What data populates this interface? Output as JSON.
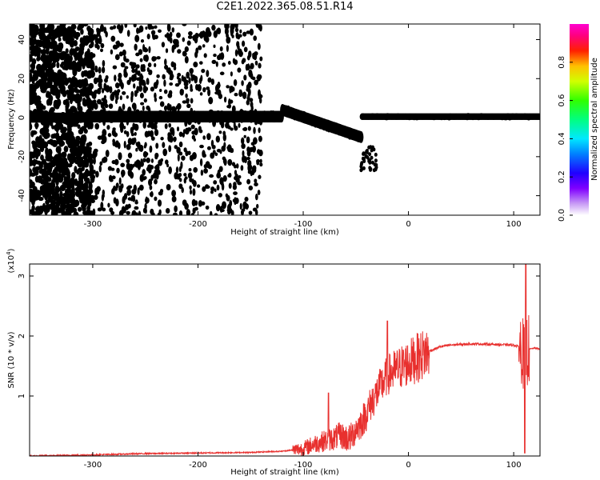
{
  "title": "C2E1.2022.365.08.51.R14",
  "colors": {
    "snr_line": "#e8302e",
    "axes": "#000000"
  },
  "chart_data": [
    {
      "type": "heatmap",
      "xlabel": "Height of straight line (km)",
      "ylabel": "Frequency (Hz)",
      "xlim": [
        -360,
        125
      ],
      "ylim": [
        -50,
        48
      ],
      "x_ticks": [
        -300,
        -200,
        -100,
        0,
        100
      ],
      "y_ticks": [
        -40,
        -20,
        0,
        20,
        40
      ],
      "colorbar": {
        "label": "Normalized spectral amplitude",
        "range": [
          0.0,
          1.0
        ],
        "ticks": [
          0.0,
          0.2,
          0.4,
          0.6,
          0.8
        ],
        "tick_labels": [
          "0.0",
          "0.2",
          "0.4",
          "0.6",
          "0.8"
        ],
        "colormap": "rainbow (white-violet-blue-cyan-green-yellow-red-magenta)"
      },
      "grid": false,
      "description_of_signal": [
        {
          "x_range": [
            -360,
            -300
          ],
          "freq_center": 0,
          "spread": 48,
          "amplitude": 0.2
        },
        {
          "x_range": [
            -300,
            -120
          ],
          "freq_center": 0,
          "band_halfwidth": 4,
          "amplitude": 0.45
        },
        {
          "x_range": [
            -120,
            -45
          ],
          "freq_center_start": 4,
          "freq_center_end": -10,
          "amplitude": 0.5
        },
        {
          "x_range": [
            -45,
            125
          ],
          "freq_center": 0,
          "band_halfwidth": 2,
          "amplitude": 0.85
        }
      ]
    },
    {
      "type": "line",
      "xlabel": "Height of straight line (km)",
      "ylabel": "SNR (10 * v/v)",
      "y_multiplier": "(x10",
      "y_multiplier_exp": "4",
      "xlim": [
        -360,
        125
      ],
      "ylim": [
        0,
        3.2
      ],
      "x_ticks": [
        -300,
        -200,
        -100,
        0,
        100
      ],
      "y_ticks": [
        1,
        2,
        3
      ],
      "grid": false,
      "series": [
        {
          "x": [
            -360,
            -300,
            -250,
            -200,
            -150,
            -120,
            -100,
            -90,
            -80,
            -70,
            -65,
            -60,
            -55,
            -50,
            -45,
            -40,
            -35,
            -30,
            -25,
            -20,
            -15,
            -10,
            -5,
            0,
            10,
            20,
            30,
            40,
            60,
            80,
            100,
            105,
            108,
            110,
            112,
            115,
            120,
            125
          ],
          "y": [
            0.0,
            0.02,
            0.04,
            0.05,
            0.06,
            0.08,
            0.12,
            0.2,
            0.25,
            0.3,
            0.35,
            0.3,
            0.3,
            0.45,
            0.55,
            0.7,
            0.9,
            1.05,
            1.2,
            1.35,
            1.4,
            1.45,
            1.5,
            1.55,
            1.65,
            1.75,
            1.82,
            1.85,
            1.87,
            1.86,
            1.85,
            1.82,
            1.8,
            1.6,
            1.75,
            1.78,
            1.8,
            1.78
          ]
        }
      ]
    }
  ]
}
